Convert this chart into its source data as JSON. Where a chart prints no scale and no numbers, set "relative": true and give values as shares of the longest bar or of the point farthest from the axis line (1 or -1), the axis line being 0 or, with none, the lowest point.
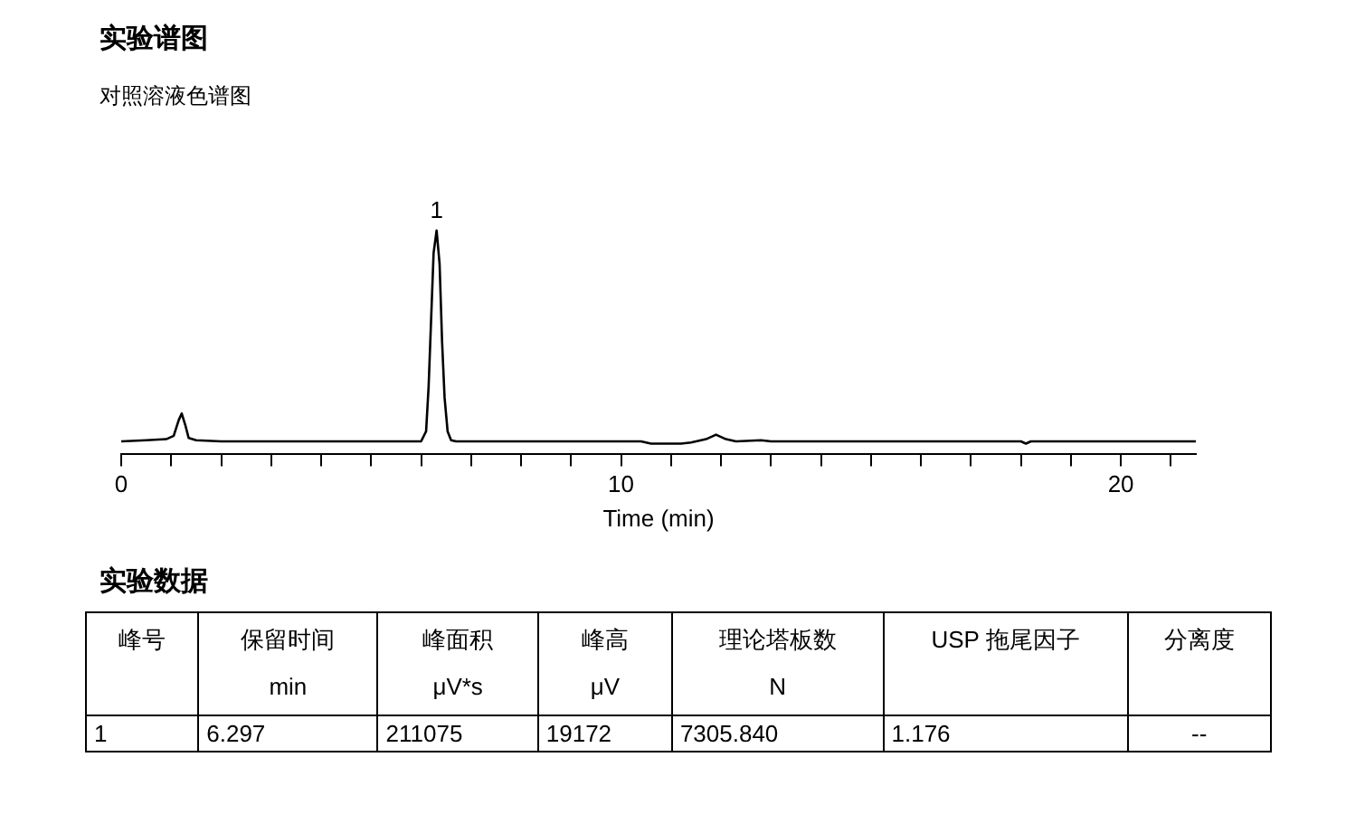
{
  "chart_data": {
    "type": "line",
    "title": "实验谱图",
    "subtitle": "对照溶液色谱图",
    "xlabel": "Time (min)",
    "relative": true,
    "tick_labels": "x",
    "grid": false,
    "legend": false,
    "marker": "none",
    "line_style": "solid",
    "xlim": [
      0,
      21.5
    ],
    "xticks": [
      0,
      {
        "value": 1,
        "label": null
      },
      {
        "value": 2,
        "label": null
      },
      {
        "value": 3,
        "label": null
      },
      {
        "value": 4,
        "label": null
      },
      {
        "value": 5,
        "label": null
      },
      {
        "value": 6,
        "label": null
      },
      {
        "value": 7,
        "label": null
      },
      {
        "value": 8,
        "label": null
      },
      {
        "value": 9,
        "label": null
      },
      10,
      {
        "value": 11,
        "label": null
      },
      {
        "value": 12,
        "label": null
      },
      {
        "value": 13,
        "label": null
      },
      {
        "value": 14,
        "label": null
      },
      {
        "value": 15,
        "label": null
      },
      {
        "value": 16,
        "label": null
      },
      {
        "value": 17,
        "label": null
      },
      {
        "value": 18,
        "label": null
      },
      {
        "value": 19,
        "label": null
      },
      20,
      {
        "value": 21,
        "label": null
      }
    ],
    "x": [
      0,
      0.5,
      0.9,
      1.05,
      1.15,
      1.21,
      1.28,
      1.35,
      1.5,
      2,
      5.8,
      6.0,
      6.1,
      6.15,
      6.2,
      6.25,
      6.31,
      6.37,
      6.42,
      6.47,
      6.53,
      6.6,
      6.7,
      10.4,
      10.6,
      11.2,
      11.4,
      11.7,
      11.9,
      12.1,
      12.3,
      12.8,
      13,
      18,
      18.1,
      18.2,
      21.5
    ],
    "series": [
      {
        "color": "#000000",
        "values": [
          0.055,
          0.06,
          0.065,
          0.08,
          0.15,
          0.18,
          0.13,
          0.07,
          0.06,
          0.055,
          0.055,
          0.055,
          0.1,
          0.3,
          0.6,
          0.9,
          1,
          0.85,
          0.5,
          0.25,
          0.1,
          0.06,
          0.055,
          0.055,
          0.045,
          0.045,
          0.05,
          0.065,
          0.085,
          0.065,
          0.055,
          0.06,
          0.055,
          0.055,
          0.045,
          0.055,
          0.055
        ]
      }
    ],
    "annotations": [
      {
        "text": "1",
        "x": 6.31,
        "y": 1
      },
      "实验数据",
      "峰号",
      "保留时间\nmin",
      "峰面积\nμV*s",
      "峰高\nμV",
      "理论塔板数\nN",
      "USP 拖尾因子",
      "分离度",
      "1",
      "6.297",
      "211075",
      "19172",
      "7305.840",
      "1.176",
      "--"
    ]
  }
}
